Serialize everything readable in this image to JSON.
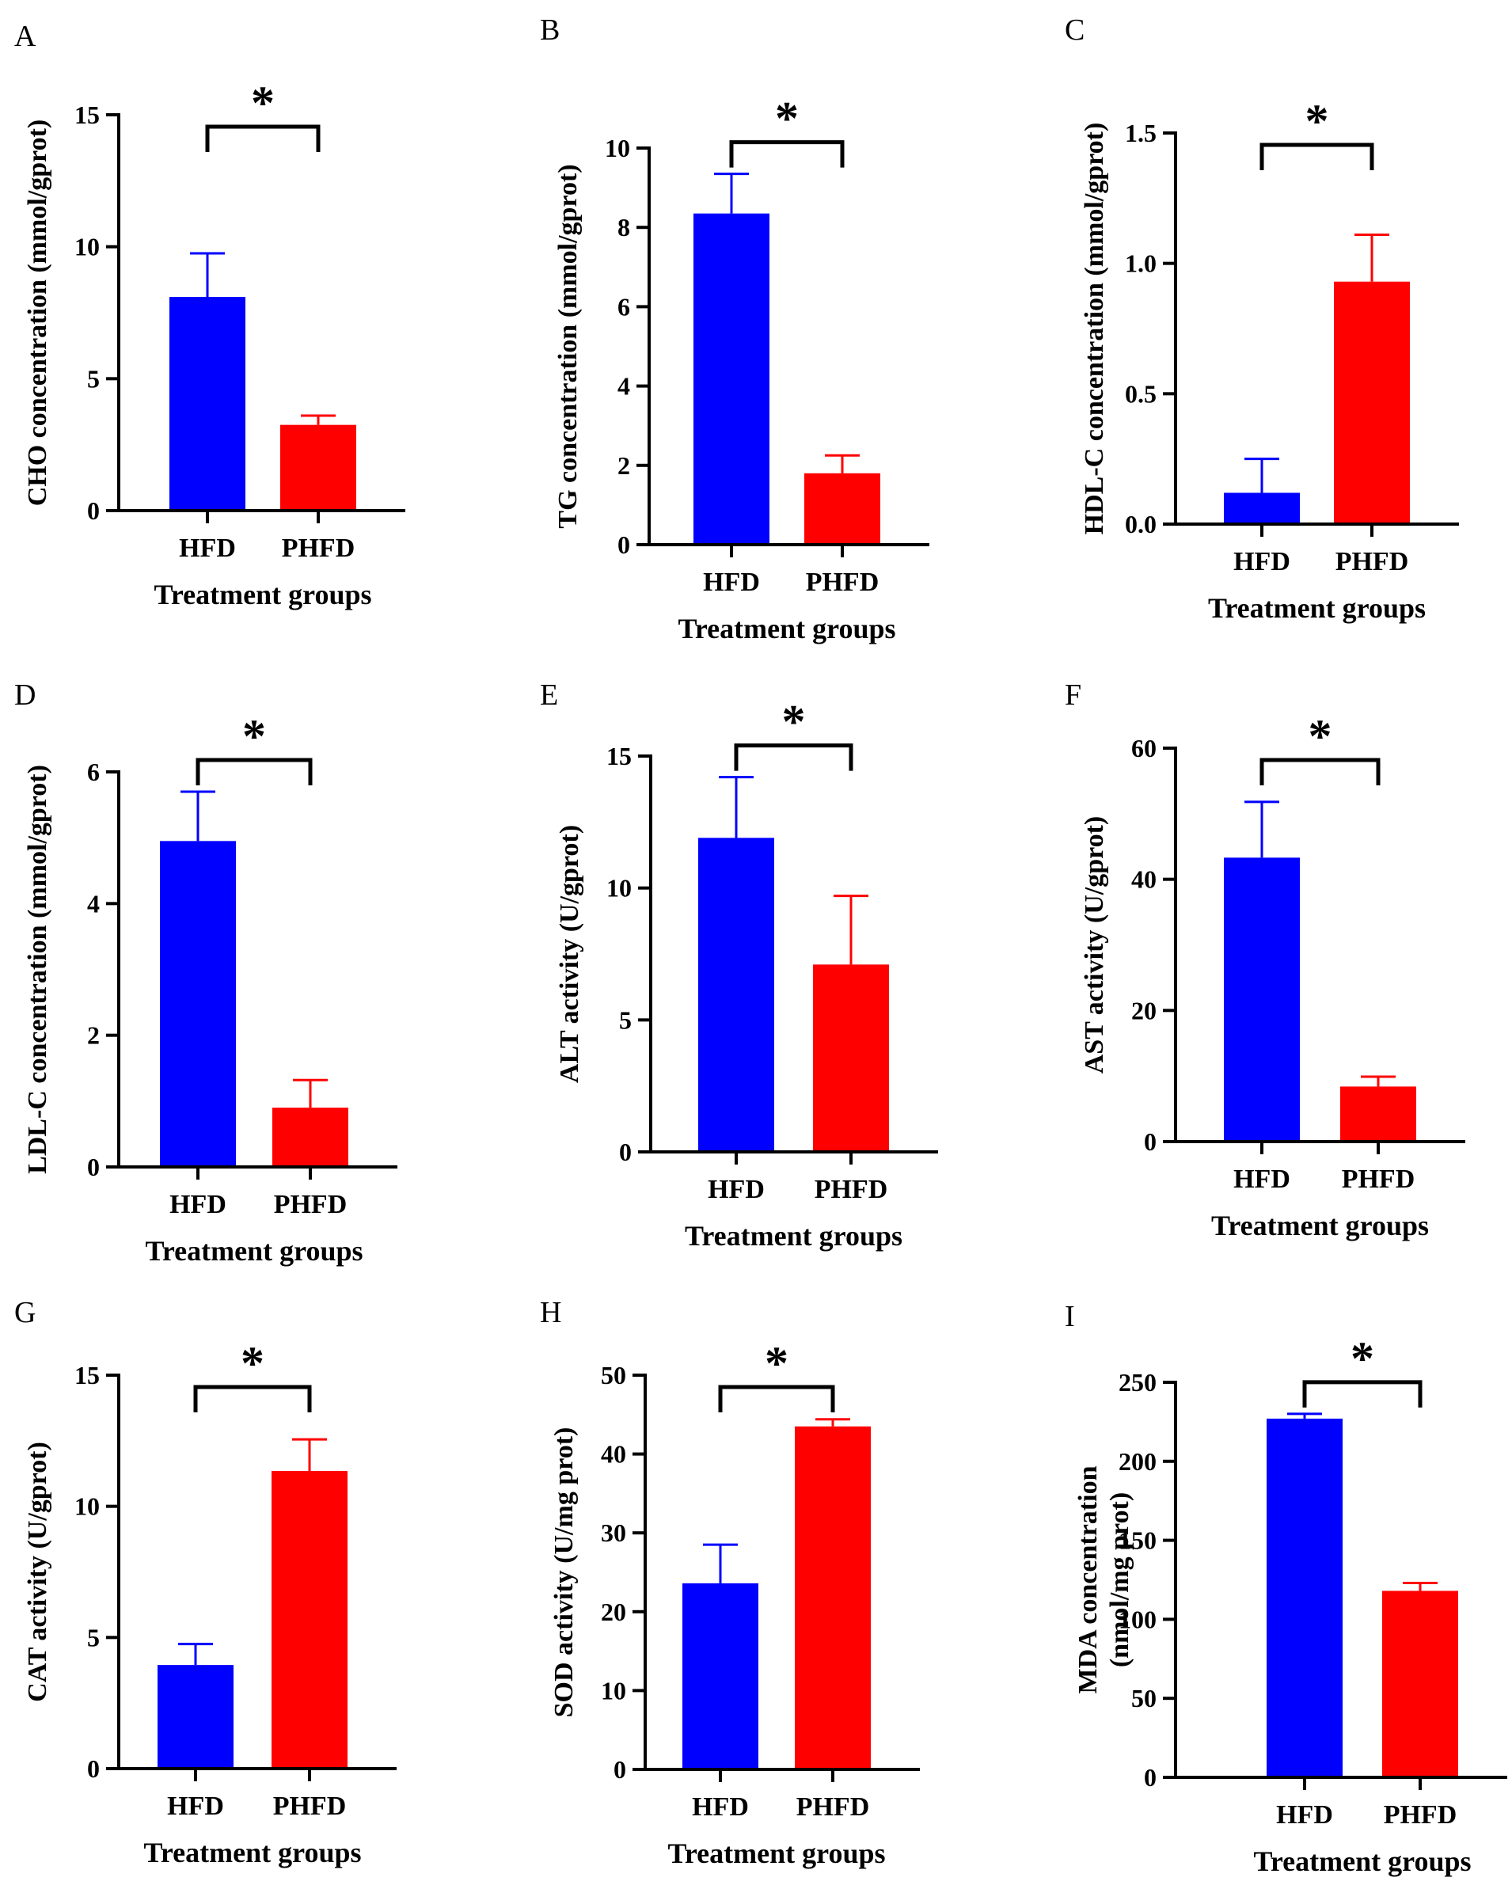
{
  "figure": {
    "colors": {
      "HFD": "#0000ff",
      "PHFD": "#ff0000",
      "axis": "#000000"
    },
    "chart_data": [
      {
        "panel": "A",
        "type": "bar",
        "categories": [
          "HFD",
          "PHFD"
        ],
        "values": [
          8.1,
          3.25
        ],
        "errors": [
          1.65,
          0.35
        ],
        "ylim": [
          0,
          15
        ],
        "yticks": [
          "0",
          "5",
          "10",
          "15"
        ],
        "ylabel": "CHO concentration (mmol/gprot)",
        "xlabel": "Treatment groups",
        "significance": "*"
      },
      {
        "panel": "B",
        "type": "bar",
        "categories": [
          "HFD",
          "PHFD"
        ],
        "values": [
          8.35,
          1.8
        ],
        "errors": [
          1.0,
          0.45
        ],
        "ylim": [
          0,
          10
        ],
        "yticks": [
          "0",
          "2",
          "4",
          "6",
          "8",
          "10"
        ],
        "ylabel": "TG concentration (mmol/gprot)",
        "xlabel": "Treatment groups",
        "significance": "*"
      },
      {
        "panel": "C",
        "type": "bar",
        "categories": [
          "HFD",
          "PHFD"
        ],
        "values": [
          0.12,
          0.93
        ],
        "errors": [
          0.13,
          0.18
        ],
        "ylim": [
          0,
          1.5
        ],
        "yticks": [
          "0.0",
          "0.5",
          "1.0",
          "1.5"
        ],
        "ylabel": "HDL-C concentration (mmol/gprot)",
        "xlabel": "Treatment groups",
        "significance": "*"
      },
      {
        "panel": "D",
        "type": "bar",
        "categories": [
          "HFD",
          "PHFD"
        ],
        "values": [
          4.95,
          0.9
        ],
        "errors": [
          0.75,
          0.42
        ],
        "ylim": [
          0,
          6
        ],
        "yticks": [
          "0",
          "2",
          "4",
          "6"
        ],
        "ylabel": "LDL-C concentration (mmol/gprot)",
        "xlabel": "Treatment groups",
        "significance": "*"
      },
      {
        "panel": "E",
        "type": "bar",
        "categories": [
          "HFD",
          "PHFD"
        ],
        "values": [
          11.9,
          7.1
        ],
        "errors": [
          2.3,
          2.6
        ],
        "ylim": [
          0,
          15
        ],
        "yticks": [
          "0",
          "5",
          "10",
          "15"
        ],
        "ylabel": "ALT activity (U/gprot)",
        "xlabel": "Treatment groups",
        "significance": "*"
      },
      {
        "panel": "F",
        "type": "bar",
        "categories": [
          "HFD",
          "PHFD"
        ],
        "values": [
          43.3,
          8.4
        ],
        "errors": [
          8.5,
          1.5
        ],
        "ylim": [
          0,
          60
        ],
        "yticks": [
          "0",
          "20",
          "40",
          "60"
        ],
        "ylabel": "AST activity (U/gprot)",
        "xlabel": "Treatment groups",
        "significance": "*"
      },
      {
        "panel": "G",
        "type": "bar",
        "categories": [
          "HFD",
          "PHFD"
        ],
        "values": [
          3.95,
          11.35
        ],
        "errors": [
          0.8,
          1.2
        ],
        "ylim": [
          0,
          15
        ],
        "yticks": [
          "0",
          "5",
          "10",
          "15"
        ],
        "ylabel": "CAT activity (U/gprot)",
        "xlabel": "Treatment groups",
        "significance": "*"
      },
      {
        "panel": "H",
        "type": "bar",
        "categories": [
          "HFD",
          "PHFD"
        ],
        "values": [
          23.6,
          43.5
        ],
        "errors": [
          4.9,
          0.9
        ],
        "ylim": [
          0,
          50
        ],
        "yticks": [
          "0",
          "10",
          "20",
          "30",
          "40",
          "50"
        ],
        "ylabel": "SOD activity (U/mg prot)",
        "xlabel": "Treatment groups",
        "significance": "*"
      },
      {
        "panel": "I",
        "type": "bar",
        "categories": [
          "HFD",
          "PHFD"
        ],
        "values": [
          227,
          118
        ],
        "errors": [
          3,
          5
        ],
        "ylim": [
          0,
          250
        ],
        "yticks": [
          "0",
          "50",
          "100",
          "150",
          "200",
          "250"
        ],
        "ylabel": "MDA concentration",
        "ylabel2": "(nmol/mg prot)",
        "xlabel": "Treatment groups",
        "significance": "*"
      }
    ]
  }
}
